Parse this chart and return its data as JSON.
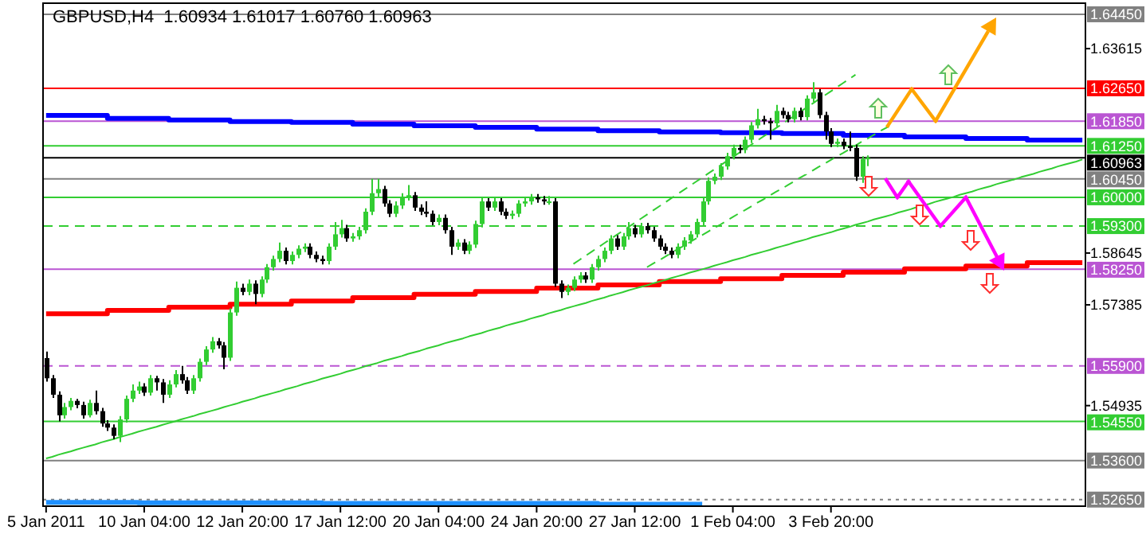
{
  "chart_data": {
    "type": "candlestick",
    "title": "GBPUSD,H4  1.60934 1.61017 1.60760 1.60963",
    "categories": [
      "5 Jan 2011",
      null,
      null,
      null,
      null,
      null,
      null,
      null,
      null,
      null,
      null,
      null,
      null,
      null,
      null,
      null,
      "10 Jan 04:00",
      null,
      null,
      null,
      null,
      null,
      null,
      null,
      null,
      null,
      null,
      null,
      null,
      null,
      null,
      null,
      "12 Jan 20:00",
      null,
      null,
      null,
      null,
      null,
      null,
      null,
      null,
      null,
      null,
      null,
      null,
      null,
      null,
      null,
      "17 Jan 12:00",
      null,
      null,
      null,
      null,
      null,
      null,
      null,
      null,
      null,
      null,
      null,
      null,
      null,
      null,
      null,
      "20 Jan 04:00",
      null,
      null,
      null,
      null,
      null,
      null,
      null,
      null,
      null,
      null,
      null,
      null,
      null,
      null,
      null,
      "24 Jan 20:00",
      null,
      null,
      null,
      null,
      null,
      null,
      null,
      null,
      null,
      null,
      null,
      null,
      null,
      null,
      null,
      "27 Jan 12:00",
      null,
      null,
      null,
      null,
      null,
      null,
      null,
      null,
      null,
      null,
      null,
      null,
      null,
      null,
      null,
      "1 Feb 04:00",
      null,
      null,
      null,
      null,
      null,
      null,
      null,
      null,
      null,
      null,
      null,
      null,
      null,
      null,
      null,
      "3 Feb 20:00",
      null,
      null,
      null,
      null,
      null,
      null,
      null,
      null,
      null,
      null,
      null,
      null,
      null,
      null,
      null,
      null,
      null,
      null,
      null,
      null,
      null,
      null,
      null,
      null,
      null,
      null,
      null,
      null,
      null,
      null,
      null,
      null,
      null,
      null,
      null,
      null,
      null,
      null,
      null,
      null,
      null
    ],
    "ylim": [
      1.5249,
      1.6472
    ],
    "yticks": [
      1.63615,
      1.58645,
      1.57385,
      1.54935
    ],
    "ohlc": [
      [
        1.5609,
        1.5625,
        1.5552,
        1.556
      ],
      [
        1.556,
        1.5568,
        1.5512,
        1.552
      ],
      [
        1.552,
        1.5528,
        1.5455,
        1.547
      ],
      [
        1.547,
        1.55,
        1.5462,
        1.549
      ],
      [
        1.549,
        1.5512,
        1.5482,
        1.5505
      ],
      [
        1.5505,
        1.551,
        1.5487,
        1.5495
      ],
      [
        1.5495,
        1.5503,
        1.5462,
        1.547
      ],
      [
        1.547,
        1.5508,
        1.5465,
        1.55
      ],
      [
        1.55,
        1.553,
        1.5472,
        1.548
      ],
      [
        1.548,
        1.5488,
        1.5442,
        1.545
      ],
      [
        1.545,
        1.5458,
        1.5432,
        1.544
      ],
      [
        1.544,
        1.5448,
        1.5412,
        1.542
      ],
      [
        1.542,
        1.5468,
        1.5405,
        1.546
      ],
      [
        1.546,
        1.5518,
        1.5452,
        1.551
      ],
      [
        1.551,
        1.5545,
        1.5502,
        1.553
      ],
      [
        1.553,
        1.5552,
        1.5522,
        1.554
      ],
      [
        1.554,
        1.5548,
        1.5517,
        1.5525
      ],
      [
        1.5525,
        1.5568,
        1.5518,
        1.556
      ],
      [
        1.556,
        1.5566,
        1.553,
        1.555
      ],
      [
        1.555,
        1.5558,
        1.55,
        1.552
      ],
      [
        1.552,
        1.5555,
        1.5512,
        1.5545
      ],
      [
        1.5545,
        1.558,
        1.5538,
        1.557
      ],
      [
        1.557,
        1.559,
        1.5547,
        1.5555
      ],
      [
        1.5555,
        1.5563,
        1.5522,
        1.553
      ],
      [
        1.553,
        1.5568,
        1.5522,
        1.556
      ],
      [
        1.556,
        1.5608,
        1.5552,
        1.56
      ],
      [
        1.56,
        1.5638,
        1.5592,
        1.563
      ],
      [
        1.563,
        1.566,
        1.5622,
        1.565
      ],
      [
        1.565,
        1.5658,
        1.5632,
        1.564
      ],
      [
        1.564,
        1.5648,
        1.5582,
        1.561
      ],
      [
        1.561,
        1.573,
        1.5602,
        1.572
      ],
      [
        1.572,
        1.5795,
        1.5712,
        1.578
      ],
      [
        1.578,
        1.579,
        1.5762,
        1.577
      ],
      [
        1.577,
        1.58,
        1.5762,
        1.579
      ],
      [
        1.579,
        1.5798,
        1.574,
        1.5765
      ],
      [
        1.5765,
        1.5808,
        1.5757,
        1.58
      ],
      [
        1.58,
        1.5838,
        1.5792,
        1.583
      ],
      [
        1.583,
        1.5858,
        1.5822,
        1.585
      ],
      [
        1.585,
        1.589,
        1.5842,
        1.587
      ],
      [
        1.587,
        1.5878,
        1.5837,
        1.5845
      ],
      [
        1.5845,
        1.5868,
        1.5837,
        1.586
      ],
      [
        1.586,
        1.5883,
        1.5852,
        1.5875
      ],
      [
        1.5875,
        1.5888,
        1.5867,
        1.588
      ],
      [
        1.588,
        1.5888,
        1.5852,
        1.586
      ],
      [
        1.586,
        1.5868,
        1.5842,
        1.585
      ],
      [
        1.585,
        1.5858,
        1.5837,
        1.5845
      ],
      [
        1.5845,
        1.5888,
        1.5837,
        1.588
      ],
      [
        1.588,
        1.594,
        1.5872,
        1.591
      ],
      [
        1.591,
        1.5945,
        1.5902,
        1.5925
      ],
      [
        1.5925,
        1.5933,
        1.5892,
        1.59
      ],
      [
        1.59,
        1.5913,
        1.5892,
        1.5905
      ],
      [
        1.5905,
        1.5928,
        1.5897,
        1.592
      ],
      [
        1.592,
        1.5973,
        1.5912,
        1.5965
      ],
      [
        1.5965,
        1.6045,
        1.5957,
        1.601
      ],
      [
        1.601,
        1.6045,
        1.6002,
        1.602
      ],
      [
        1.602,
        1.6028,
        1.5977,
        1.5985
      ],
      [
        1.5985,
        1.5993,
        1.5952,
        1.596
      ],
      [
        1.596,
        1.599,
        1.5952,
        1.598
      ],
      [
        1.598,
        1.601,
        1.5972,
        1.6
      ],
      [
        1.6,
        1.603,
        1.5992,
        1.6005
      ],
      [
        1.6005,
        1.6013,
        1.5967,
        1.5975
      ],
      [
        1.5975,
        1.5983,
        1.5957,
        1.5965
      ],
      [
        1.5965,
        1.599,
        1.5952,
        1.596
      ],
      [
        1.596,
        1.5968,
        1.5932,
        1.594
      ],
      [
        1.594,
        1.5958,
        1.5932,
        1.595
      ],
      [
        1.595,
        1.5958,
        1.5912,
        1.592
      ],
      [
        1.592,
        1.5928,
        1.586,
        1.588
      ],
      [
        1.588,
        1.5898,
        1.5872,
        1.589
      ],
      [
        1.589,
        1.5898,
        1.5862,
        1.587
      ],
      [
        1.587,
        1.5893,
        1.5862,
        1.5885
      ],
      [
        1.5885,
        1.5943,
        1.5877,
        1.5935
      ],
      [
        1.5935,
        1.6,
        1.5927,
        1.599
      ],
      [
        1.599,
        1.5998,
        1.5967,
        1.5975
      ],
      [
        1.5975,
        1.5998,
        1.5967,
        1.599
      ],
      [
        1.599,
        1.5998,
        1.5957,
        1.5965
      ],
      [
        1.5965,
        1.5973,
        1.5947,
        1.5955
      ],
      [
        1.5955,
        1.5968,
        1.5947,
        1.596
      ],
      [
        1.596,
        1.5993,
        1.5952,
        1.5985
      ],
      [
        1.5985,
        1.5998,
        1.5977,
        1.599
      ],
      [
        1.599,
        1.6008,
        1.5982,
        1.6
      ],
      [
        1.6,
        1.6008,
        1.5987,
        1.5995
      ],
      [
        1.5995,
        1.6003,
        1.5982,
        1.599
      ],
      [
        1.599,
        1.6003,
        1.5982,
        1.599
      ],
      [
        1.599,
        1.5998,
        1.5782,
        1.579
      ],
      [
        1.579,
        1.5798,
        1.5755,
        1.577
      ],
      [
        1.577,
        1.5788,
        1.5762,
        1.578
      ],
      [
        1.578,
        1.5808,
        1.5772,
        1.58
      ],
      [
        1.58,
        1.5818,
        1.5792,
        1.581
      ],
      [
        1.581,
        1.5818,
        1.5792,
        1.58
      ],
      [
        1.58,
        1.5838,
        1.5792,
        1.583
      ],
      [
        1.583,
        1.5858,
        1.5822,
        1.585
      ],
      [
        1.585,
        1.5878,
        1.5842,
        1.587
      ],
      [
        1.587,
        1.5908,
        1.5862,
        1.59
      ],
      [
        1.59,
        1.5908,
        1.5872,
        1.588
      ],
      [
        1.588,
        1.5913,
        1.5872,
        1.5905
      ],
      [
        1.5905,
        1.594,
        1.5897,
        1.5925
      ],
      [
        1.5925,
        1.5933,
        1.5902,
        1.591
      ],
      [
        1.591,
        1.5938,
        1.5902,
        1.593
      ],
      [
        1.593,
        1.5938,
        1.5912,
        1.592
      ],
      [
        1.592,
        1.5928,
        1.5892,
        1.59
      ],
      [
        1.59,
        1.5908,
        1.5872,
        1.588
      ],
      [
        1.588,
        1.5888,
        1.5862,
        1.587
      ],
      [
        1.587,
        1.5878,
        1.5852,
        1.586
      ],
      [
        1.586,
        1.5888,
        1.5852,
        1.588
      ],
      [
        1.588,
        1.5903,
        1.5872,
        1.5895
      ],
      [
        1.5895,
        1.5918,
        1.5887,
        1.591
      ],
      [
        1.591,
        1.5948,
        1.5902,
        1.594
      ],
      [
        1.594,
        1.5998,
        1.5932,
        1.599
      ],
      [
        1.599,
        1.6048,
        1.5982,
        1.604
      ],
      [
        1.604,
        1.6058,
        1.6032,
        1.605
      ],
      [
        1.605,
        1.6083,
        1.6042,
        1.6075
      ],
      [
        1.6075,
        1.6108,
        1.6067,
        1.61
      ],
      [
        1.61,
        1.6128,
        1.6092,
        1.612
      ],
      [
        1.612,
        1.6128,
        1.6107,
        1.6115
      ],
      [
        1.6115,
        1.6148,
        1.6107,
        1.614
      ],
      [
        1.614,
        1.6183,
        1.6132,
        1.6175
      ],
      [
        1.6175,
        1.6215,
        1.6167,
        1.619
      ],
      [
        1.619,
        1.6198,
        1.6177,
        1.6185
      ],
      [
        1.6185,
        1.6193,
        1.614,
        1.618
      ],
      [
        1.618,
        1.6225,
        1.6172,
        1.621
      ],
      [
        1.621,
        1.6218,
        1.6192,
        1.62
      ],
      [
        1.62,
        1.6208,
        1.6182,
        1.619
      ],
      [
        1.619,
        1.6218,
        1.6182,
        1.621
      ],
      [
        1.621,
        1.6218,
        1.6187,
        1.6195
      ],
      [
        1.6195,
        1.6248,
        1.6187,
        1.624
      ],
      [
        1.624,
        1.628,
        1.6232,
        1.6255
      ],
      [
        1.6255,
        1.6263,
        1.6192,
        1.62
      ],
      [
        1.62,
        1.6208,
        1.614,
        1.616
      ],
      [
        1.616,
        1.6168,
        1.6122,
        1.613
      ],
      [
        1.613,
        1.6143,
        1.6122,
        1.6135
      ],
      [
        1.6135,
        1.6143,
        1.6117,
        1.6125
      ],
      [
        1.6125,
        1.616,
        1.6112,
        1.612
      ],
      [
        1.612,
        1.6128,
        1.604,
        1.605
      ],
      [
        1.605,
        1.61,
        1.6035,
        1.6093
      ],
      [
        1.60934,
        1.61017,
        1.6076,
        1.60963
      ],
      null,
      null,
      null,
      null,
      null,
      null,
      null,
      null,
      null,
      null,
      null,
      null,
      null,
      null,
      null,
      null,
      null,
      null,
      null,
      null,
      null,
      null,
      null,
      null,
      null,
      null,
      null,
      null,
      null,
      null,
      null,
      null,
      null,
      null,
      null
    ],
    "series": [
      {
        "type": "step",
        "color": "#0000ff",
        "values": [
          1.6199,
          1.6199,
          1.6199,
          1.6199,
          1.6199,
          1.6199,
          1.6199,
          1.6199,
          1.6199,
          1.6199,
          1.6192,
          1.6192,
          1.6192,
          1.6192,
          1.6192,
          1.6192,
          1.6192,
          1.6192,
          1.6192,
          1.6192,
          1.6188,
          1.6188,
          1.6188,
          1.6188,
          1.6188,
          1.6188,
          1.6188,
          1.6188,
          1.6188,
          1.6188,
          1.6184,
          1.6184,
          1.6184,
          1.6184,
          1.6184,
          1.6184,
          1.6184,
          1.6184,
          1.6184,
          1.6184,
          1.6182,
          1.6182,
          1.6182,
          1.6182,
          1.6182,
          1.6182,
          1.6182,
          1.6182,
          1.6182,
          1.6182,
          1.6178,
          1.6178,
          1.6178,
          1.6178,
          1.6178,
          1.6178,
          1.6178,
          1.6178,
          1.6178,
          1.6178,
          1.6174,
          1.6174,
          1.6174,
          1.6174,
          1.6174,
          1.6174,
          1.6174,
          1.6174,
          1.6174,
          1.6174,
          1.617,
          1.617,
          1.617,
          1.617,
          1.617,
          1.617,
          1.617,
          1.617,
          1.617,
          1.617,
          1.6166,
          1.6166,
          1.6166,
          1.6166,
          1.6166,
          1.6166,
          1.6166,
          1.6166,
          1.6166,
          1.6166,
          1.6162,
          1.6162,
          1.6162,
          1.6162,
          1.6162,
          1.6162,
          1.6162,
          1.6162,
          1.6162,
          1.6162,
          1.6159,
          1.6159,
          1.6159,
          1.6159,
          1.6159,
          1.6159,
          1.6159,
          1.6159,
          1.6159,
          1.6159,
          1.6157,
          1.6157,
          1.6157,
          1.6157,
          1.6157,
          1.6157,
          1.6157,
          1.6157,
          1.6157,
          1.6157,
          1.6155,
          1.6155,
          1.6155,
          1.6155,
          1.6155,
          1.6155,
          1.6155,
          1.6155,
          1.6155,
          1.6155,
          1.6151,
          1.6151,
          1.6151,
          1.6151,
          1.6151,
          1.6151,
          1.6151,
          1.6151,
          1.6151,
          1.6151,
          1.6147,
          1.6147,
          1.6147,
          1.6147,
          1.6147,
          1.6147,
          1.6147,
          1.6147,
          1.6147,
          1.6147,
          1.6143,
          1.6143,
          1.6143,
          1.6143,
          1.6143,
          1.6143,
          1.6143,
          1.6143,
          1.6143,
          1.6143,
          1.6139,
          1.6139,
          1.6139,
          1.6139,
          1.6139,
          1.6139,
          1.6139,
          1.6139,
          1.6139,
          1.6139
        ]
      },
      {
        "type": "step",
        "color": "#ff0000",
        "values": [
          1.5717,
          1.5717,
          1.5717,
          1.5717,
          1.5717,
          1.5717,
          1.5717,
          1.5717,
          1.5717,
          1.5717,
          1.5725,
          1.5725,
          1.5725,
          1.5725,
          1.5725,
          1.5725,
          1.5725,
          1.5725,
          1.5725,
          1.5725,
          1.5733,
          1.5733,
          1.5733,
          1.5733,
          1.5733,
          1.5733,
          1.5733,
          1.5733,
          1.5733,
          1.5733,
          1.574,
          1.574,
          1.574,
          1.574,
          1.574,
          1.574,
          1.574,
          1.574,
          1.574,
          1.574,
          1.5748,
          1.5748,
          1.5748,
          1.5748,
          1.5748,
          1.5748,
          1.5748,
          1.5748,
          1.5748,
          1.5748,
          1.5756,
          1.5756,
          1.5756,
          1.5756,
          1.5756,
          1.5756,
          1.5756,
          1.5756,
          1.5756,
          1.5756,
          1.5764,
          1.5764,
          1.5764,
          1.5764,
          1.5764,
          1.5764,
          1.5764,
          1.5764,
          1.5764,
          1.5764,
          1.5771,
          1.5771,
          1.5771,
          1.5771,
          1.5771,
          1.5771,
          1.5771,
          1.5771,
          1.5771,
          1.5771,
          1.5779,
          1.5779,
          1.5779,
          1.5779,
          1.5779,
          1.5779,
          1.5779,
          1.5779,
          1.5779,
          1.5779,
          1.5787,
          1.5787,
          1.5787,
          1.5787,
          1.5787,
          1.5787,
          1.5787,
          1.5787,
          1.5787,
          1.5787,
          1.5795,
          1.5795,
          1.5795,
          1.5795,
          1.5795,
          1.5795,
          1.5795,
          1.5795,
          1.5795,
          1.5795,
          1.5802,
          1.5802,
          1.5802,
          1.5802,
          1.5802,
          1.5802,
          1.5802,
          1.5802,
          1.5802,
          1.5802,
          1.581,
          1.581,
          1.581,
          1.581,
          1.581,
          1.581,
          1.581,
          1.581,
          1.581,
          1.581,
          1.5818,
          1.5818,
          1.5818,
          1.5818,
          1.5818,
          1.5818,
          1.5818,
          1.5818,
          1.5818,
          1.5818,
          1.5826,
          1.5826,
          1.5826,
          1.5826,
          1.5826,
          1.5826,
          1.5826,
          1.5826,
          1.5826,
          1.5826,
          1.5833,
          1.5833,
          1.5833,
          1.5833,
          1.5833,
          1.5833,
          1.5833,
          1.5833,
          1.5833,
          1.5833,
          1.5841,
          1.5841,
          1.5841,
          1.5841,
          1.5841,
          1.5841,
          1.5841,
          1.5841,
          1.5841,
          1.5841
        ]
      },
      {
        "type": "step",
        "color": "#1e90ff",
        "values": [
          1.5258,
          1.5258,
          1.5258,
          1.5258,
          1.5258,
          1.5258,
          1.5258,
          1.5258,
          1.5258,
          1.5258,
          1.5258,
          1.5258,
          1.5258,
          1.5258,
          1.5258,
          1.5257,
          1.5257,
          1.5257,
          1.5257,
          1.5257,
          1.5257,
          1.5257,
          1.5257,
          1.5257,
          1.5257,
          1.5257,
          1.5257,
          1.5257,
          1.5257,
          1.5257,
          1.5257,
          1.5257,
          1.5257,
          1.5257,
          1.5257,
          1.5257,
          1.5257,
          1.5257,
          1.5257,
          1.5257,
          1.5257,
          1.5257,
          1.5257,
          1.5257,
          1.5257,
          1.5256,
          1.5256,
          1.5256,
          1.5256,
          1.5256,
          1.5256,
          1.5256,
          1.5256,
          1.5256,
          1.5256,
          1.5256,
          1.5256,
          1.5256,
          1.5256,
          1.5256,
          1.5256,
          1.5256,
          1.5256,
          1.5256,
          1.5256,
          1.5256,
          1.5256,
          1.5256,
          1.5256,
          1.5256,
          1.5256,
          1.5256,
          1.5256,
          1.5256,
          1.5256,
          1.5256,
          1.5256,
          1.5256,
          1.5256,
          1.5256,
          1.5256,
          1.5256,
          1.5256,
          1.5256,
          1.5256,
          1.5256,
          1.5256,
          1.5256,
          1.5256,
          1.5256,
          1.5254,
          1.5254,
          1.5254,
          1.5254,
          1.5254,
          1.5254,
          1.5254,
          1.5254,
          1.5254,
          1.5254,
          1.5254,
          1.5254,
          1.5254,
          1.5254,
          1.5254,
          1.5254,
          1.5254,
          1.5254,
          null,
          null,
          null,
          null,
          null,
          null,
          null,
          null,
          null,
          null,
          null,
          null,
          null,
          null,
          null,
          null,
          null,
          null,
          null,
          null,
          null,
          null,
          null,
          null,
          null,
          null,
          null,
          null,
          null,
          null,
          null,
          null,
          null,
          null,
          null,
          null,
          null,
          null,
          null,
          null,
          null,
          null,
          null,
          null,
          null,
          null,
          null,
          null,
          null,
          null,
          null,
          null,
          null,
          null,
          null,
          null,
          null,
          null,
          null,
          null,
          null,
          null
        ]
      },
      {
        "type": "line",
        "color": "#32cd32",
        "values": [
          1.5365,
          1.5369,
          1.5374,
          1.5378,
          1.5382,
          1.5387,
          1.5391,
          1.5395,
          1.5399,
          1.5404,
          1.5408,
          1.5412,
          1.5417,
          1.5421,
          1.5425,
          1.543,
          1.5434,
          1.5438,
          1.5442,
          1.5447,
          1.5451,
          1.5455,
          1.546,
          1.5464,
          1.5468,
          1.5473,
          1.5477,
          1.5481,
          1.5485,
          1.549,
          1.5494,
          1.5498,
          1.5503,
          1.5507,
          1.5511,
          1.5516,
          1.552,
          1.5524,
          1.5528,
          1.5533,
          1.5537,
          1.5541,
          1.5546,
          1.555,
          1.5554,
          1.5559,
          1.5563,
          1.5567,
          1.5571,
          1.5576,
          1.558,
          1.5584,
          1.5589,
          1.5593,
          1.5597,
          1.5602,
          1.5606,
          1.561,
          1.5614,
          1.5619,
          1.5623,
          1.5627,
          1.5632,
          1.5636,
          1.564,
          1.5645,
          1.5649,
          1.5653,
          1.5657,
          1.5662,
          1.5666,
          1.567,
          1.5675,
          1.5679,
          1.5683,
          1.5688,
          1.5692,
          1.5696,
          1.57,
          1.5705,
          1.5709,
          1.5713,
          1.5718,
          1.5722,
          1.5726,
          1.5731,
          1.5735,
          1.5739,
          1.5743,
          1.5748,
          1.5752,
          1.5756,
          1.5761,
          1.5765,
          1.5769,
          1.5774,
          1.5778,
          1.5782,
          1.5786,
          1.5791,
          1.5795,
          1.5799,
          1.5804,
          1.5808,
          1.5812,
          1.5817,
          1.5821,
          1.5825,
          1.5829,
          1.5834,
          1.5838,
          1.5842,
          1.5847,
          1.5851,
          1.5855,
          1.586,
          1.5864,
          1.5868,
          1.5872,
          1.5877,
          1.5881,
          1.5885,
          1.589,
          1.5894,
          1.5898,
          1.5903,
          1.5907,
          1.5911,
          1.5915,
          1.592,
          1.5924,
          1.5928,
          1.5933,
          1.5937,
          1.5941,
          1.5946,
          1.595,
          1.5954,
          1.5958,
          1.5963,
          1.5967,
          1.5971,
          1.5976,
          1.598,
          1.5984,
          1.5989,
          1.5993,
          1.5997,
          1.6001,
          1.6006,
          1.601,
          1.6014,
          1.6019,
          1.6023,
          1.6027,
          1.6032,
          1.6036,
          1.604,
          1.6044,
          1.6049,
          1.6053,
          1.6057,
          1.6062,
          1.6066,
          1.607,
          1.6075,
          1.6079,
          1.6083,
          1.6087,
          1.6092
        ]
      },
      {
        "type": "line",
        "color": "#32cd32",
        "line_style": "dashed",
        "values": [
          null,
          null,
          null,
          null,
          null,
          null,
          null,
          null,
          null,
          null,
          null,
          null,
          null,
          null,
          null,
          null,
          null,
          null,
          null,
          null,
          null,
          null,
          null,
          null,
          null,
          null,
          null,
          null,
          null,
          null,
          null,
          null,
          null,
          null,
          null,
          null,
          null,
          null,
          null,
          null,
          null,
          null,
          null,
          null,
          null,
          null,
          null,
          null,
          null,
          null,
          null,
          null,
          null,
          null,
          null,
          null,
          null,
          null,
          null,
          null,
          null,
          null,
          null,
          null,
          null,
          null,
          null,
          null,
          null,
          null,
          null,
          null,
          null,
          null,
          null,
          null,
          null,
          null,
          null,
          null,
          null,
          null,
          null,
          null,
          null,
          null,
          1.5838,
          1.5848,
          1.5858,
          1.5868,
          1.5878,
          1.5888,
          1.5898,
          1.5908,
          1.5918,
          1.5928,
          1.5938,
          1.5948,
          1.5958,
          1.5968,
          1.5978,
          1.5988,
          1.5998,
          1.6008,
          1.6018,
          1.6028,
          1.6038,
          1.6048,
          1.6058,
          1.6068,
          1.6078,
          1.6088,
          1.6098,
          1.6108,
          1.6118,
          1.6128,
          1.6138,
          1.6148,
          1.6158,
          1.6168,
          1.6178,
          1.6188,
          1.6198,
          1.6208,
          1.6218,
          1.6228,
          1.6238,
          1.6248,
          1.6258,
          1.6268,
          1.6278,
          1.6288,
          1.6298,
          null,
          null,
          null,
          null,
          null,
          null,
          null,
          null,
          null,
          null,
          null,
          null,
          null,
          null,
          null,
          null,
          null,
          null,
          null,
          null,
          null,
          null,
          null,
          null,
          null,
          null,
          null,
          null,
          null,
          null,
          null,
          null,
          null,
          null,
          null,
          null,
          null
        ]
      },
      {
        "type": "line",
        "color": "#32cd32",
        "line_style": "dashed",
        "values": [
          null,
          null,
          null,
          null,
          null,
          null,
          null,
          null,
          null,
          null,
          null,
          null,
          null,
          null,
          null,
          null,
          null,
          null,
          null,
          null,
          null,
          null,
          null,
          null,
          null,
          null,
          null,
          null,
          null,
          null,
          null,
          null,
          null,
          null,
          null,
          null,
          null,
          null,
          null,
          null,
          null,
          null,
          null,
          null,
          null,
          null,
          null,
          null,
          null,
          null,
          null,
          null,
          null,
          null,
          null,
          null,
          null,
          null,
          null,
          null,
          null,
          null,
          null,
          null,
          null,
          null,
          null,
          null,
          null,
          null,
          null,
          null,
          null,
          null,
          null,
          null,
          null,
          null,
          null,
          null,
          null,
          null,
          null,
          null,
          null,
          null,
          null,
          null,
          null,
          null,
          null,
          null,
          null,
          null,
          null,
          null,
          null,
          null,
          1.583,
          1.5839,
          1.5847,
          1.5856,
          1.5865,
          1.5874,
          1.5882,
          1.5891,
          1.59,
          1.5908,
          1.5917,
          1.5926,
          1.5934,
          1.5943,
          1.5952,
          1.5961,
          1.5969,
          1.5978,
          1.5987,
          1.5995,
          1.6004,
          1.6013,
          1.6021,
          1.603,
          1.6039,
          1.6048,
          1.6056,
          1.6065,
          1.6074,
          1.6082,
          1.6091,
          1.61,
          1.6108,
          1.6117,
          1.6126,
          1.6135,
          1.6143,
          1.6152,
          1.6161,
          1.6169,
          1.6178,
          null,
          null,
          null,
          null,
          null,
          null,
          null,
          null,
          null,
          null,
          null,
          null,
          null,
          null,
          null,
          null,
          null,
          null,
          null,
          null,
          null,
          null,
          null,
          null,
          null,
          null,
          null,
          null,
          null,
          null,
          null
        ]
      }
    ],
    "ref_lines": [
      {
        "axis": "y",
        "value": 1.6445,
        "label": "1.64450",
        "color": "#808080"
      },
      {
        "axis": "y",
        "value": 1.6265,
        "label": "1.62650",
        "color": "#ff0000"
      },
      {
        "axis": "y",
        "value": 1.6185,
        "label": "1.61850",
        "color": "#ba55d3"
      },
      {
        "axis": "y",
        "value": 1.6125,
        "label": "1.61250",
        "color": "#32cd32"
      },
      {
        "axis": "y",
        "value": 1.60963,
        "label": "1.60963",
        "color": "#000000"
      },
      {
        "axis": "y",
        "value": 1.6045,
        "label": "1.60450",
        "color": "#808080"
      },
      {
        "axis": "y",
        "value": 1.6,
        "label": "1.60000",
        "color": "#32cd32"
      },
      {
        "axis": "y",
        "value": 1.593,
        "label": "1.59300",
        "color": "#32cd32",
        "line_style": "dashed"
      },
      {
        "axis": "y",
        "value": 1.5825,
        "label": "1.58250",
        "color": "#ba55d3"
      },
      {
        "axis": "y",
        "value": 1.559,
        "label": "1.55900",
        "color": "#ba55d3",
        "line_style": "dashed"
      },
      {
        "axis": "y",
        "value": 1.5455,
        "label": "1.54550",
        "color": "#32cd32"
      },
      {
        "axis": "y",
        "value": 1.536,
        "label": "1.53600",
        "color": "#808080"
      },
      {
        "axis": "y",
        "value": 1.5265,
        "label": "1.52650",
        "color": "#808080",
        "line_style": "dotted"
      }
    ]
  }
}
